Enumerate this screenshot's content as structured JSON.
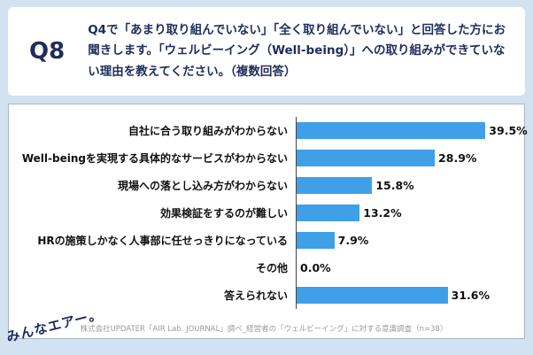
{
  "header": {
    "q_label": "Q8",
    "question": "Q4で「あまり取り組んでいない」「全く取り組んでいない」と回答した方にお聞きします。「ウェルビーイング（Well-being）」への取り組みができていない理由を教えてください。（複数回答）"
  },
  "chart_data": {
    "type": "bar",
    "orientation": "horizontal",
    "title": "",
    "categories": [
      "自社に合う取り組みがわからない",
      "Well-beingを実現する具体的なサービスがわからない",
      "現場への落とし込み方がわからない",
      "効果検証をするのが難しい",
      "HRの施策しかなく人事部に任せっきりになっている",
      "その他",
      "答えられない"
    ],
    "values": [
      39.5,
      28.9,
      15.8,
      13.2,
      7.9,
      0.0,
      31.6
    ],
    "value_labels": [
      "39.5%",
      "28.9%",
      "15.8%",
      "13.2%",
      "7.9%",
      "0.0%",
      "31.6%"
    ],
    "xlim": [
      0,
      45
    ],
    "grid": false,
    "legend": false,
    "bar_color": "#3fa0e8"
  },
  "footer": {
    "logo": "みんなエアー。",
    "source": "株式会社UPDATER「AIR Lab. JOURNAL」調べ_経営者の「ウェルビーイング」に対する意識調査（n=38）"
  }
}
